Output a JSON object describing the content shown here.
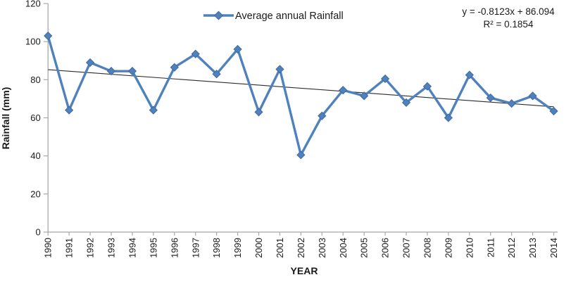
{
  "chart_data": {
    "type": "line",
    "title": "",
    "xlabel": "YEAR",
    "ylabel": "Rainfall (mm)",
    "ylim": [
      0,
      120
    ],
    "y_ticks": [
      0,
      20,
      40,
      60,
      80,
      100,
      120
    ],
    "grid": false,
    "legend_position": "top-center",
    "x": [
      1990,
      1991,
      1992,
      1993,
      1994,
      1995,
      1996,
      1997,
      1998,
      1999,
      2000,
      2001,
      2002,
      2003,
      2004,
      2005,
      2006,
      2007,
      2008,
      2009,
      2010,
      2011,
      2012,
      2013,
      2014
    ],
    "series": [
      {
        "name": "Average annual  Rainfall",
        "marker": "diamond",
        "values": [
          103,
          64,
          89,
          84.5,
          84.5,
          64,
          86.5,
          93.5,
          83,
          96,
          63,
          85.5,
          40.5,
          61,
          74.5,
          71.5,
          80.5,
          68,
          76.5,
          60,
          82.5,
          70.5,
          67.5,
          71.5,
          63.5
        ]
      }
    ],
    "trendline": {
      "slope": -0.8123,
      "intercept": 86.094,
      "equation": "y = -0.8123x + 86.094",
      "r_squared": "R² = 0.1854"
    }
  },
  "colors": {
    "series": "#4F81BD",
    "marker_border": "#3E699F",
    "trendline": "#2b2b2b",
    "axis": "#A8A8A8",
    "text": "#1a1a1a"
  }
}
